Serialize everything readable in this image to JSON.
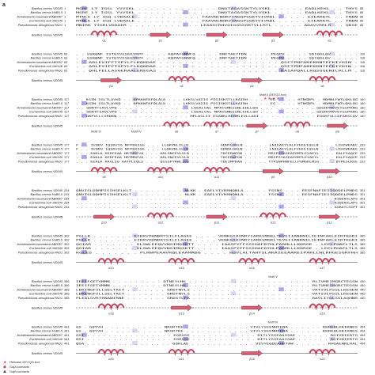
{
  "panel_label": "a",
  "species": [
    "Bacillus cereus VD045",
    "Bacillus cereus HuB5-5",
    "Acinetobacter baumannii AB0057",
    "Escherichia coli UMI146",
    "Pseudomonas aeruginosa PAO1"
  ],
  "blocks": [
    {
      "species": [
        0,
        1,
        2,
        3,
        4
      ],
      "starts": [
        "1",
        "1",
        "1",
        "1",
        "1"
      ],
      "seqs": [
        "MSRE LY IGSL YVVSKL . . . . . . . . . . . . . DNVTAGASGKTYLVSKL . . . . . EADLKEKL . . THYS",
        "MSRE LY IGSL YVVSKL . . . . . . . . . . . . . DNVTAGASGKTYLVSKL . . . . . EADLKEKL . . THYS",
        "MTNLE LY IGQ LVDAALE . . . . . . . . . . . FAAVNCNHRYINGGPSGKTVIVRDL . . . . . EIEARKTL . . FNDN",
        "MTNLE LY IGQ LVDAALE . . . . . . . . . . . FAAVNCNHRYINGGPSGKTVIVRDL . . . . . EIEARKTL . . FNDN",
        "MNIRK YIGRLVDAAER . . . . . . . . . . . . LEAAGCRHVQIGGGSGKTVLLRTL . . . . . ADAVVRRLR . . QDSE"
      ],
      "ends": [
        "85",
        "85",
        "85",
        "85",
        "85"
      ],
      "motif_label": "",
      "ss_label": "Bacillus cereus VD045",
      "ss_names": [
        "α1",
        "β1",
        "β2",
        "β3",
        "α2"
      ]
    },
    {
      "species": [
        0,
        1,
        2,
        3,
        4
      ],
      "starts": [
        "63",
        "63",
        "63",
        "63",
        "63"
      ],
      "seqs": [
        ". . SSRQNF ISTGYVFSEEYRPF . . . . KQPAFGNNFQ . . . . DNFTAEYFDN . . . . PEQPH . . . . SDIQGLQV . . . . .",
        ". . SSRQNF ISTGYVFSEEYRPF . . . . KQPAFGNNFQ . . . . DNFTAEYFDN . . . . PEQPH . . . . SDIQGLQV . . . . .",
        ". . ARLEVIFFTSPYLFLKQKDAE . . . . . . . . . . . . . . . . . . . QSFTPMFAKEKRNTEFKIYHIN .",
        ". . ARLEVIFFTSPYLFLKQKDAE . . . . . . . . . . . . . . . . . . . QSFTPMFAKEKRNTEFKIYHIN .",
        ". . QHLFELLASGERAALEREGAS . . . . . . . . . . . . . . . . . . . EAIAPQALLRQSGGENILRLLM ."
      ],
      "ends": [
        "116",
        "116",
        "116",
        "116",
        "116"
      ],
      "motif_label": "",
      "ss_label": "Bacillus cereus VD045",
      "ss_names": [
        "β3",
        "α4",
        "β4",
        "α5"
      ]
    },
    {
      "species": [
        0,
        1,
        2,
        3,
        4
      ],
      "starts": [
        "117",
        "117",
        "117",
        "117",
        "117"
      ],
      "seqs": [
        ". . KGIN IGLTLAVKD . . NPKKNFKFQLALD . . . LKKSLVAIIG PIGIGKSTLLKAIRH . . . . EG . . . . HTNSDPL . HDMNLFWTLQKLQG",
        ". . KGIN IGLTLAVKD . . NPKKNFKFQLALD . . . LKKSLVAIIG PIGIGKSTLLKAIRH . . . . EG . . . . HTNSDPL . HDMNLFWTLQKLQG",
        ". . SKNTFIAVLVPD . . . . . . . . . . . . . . LGEKLVAL MPAVSMKSSNLEHLLQH . . . . . . . . . . . GDSHYMVVEYSSPRNG",
        ". . SKNTFIAVLVPD . . . . . . . . . . . . . . LGEKLVAL MPAVSMKSSNLEHLLQH . . . . . . . . . . . GDSHYMVVEYSSPRNG",
        ". . GKPVLLLVRDKN . . . . . . . . . . . . . . MPLASLII EGANRLRERMLEVLLAAI . . . . . . . . . . . EGGRFVLLDFAKSLQV"
      ],
      "ends": [
        "180",
        "180",
        "180",
        "180",
        "180"
      ],
      "motif_label": "Motif II (DEXQD-box)",
      "ss_label": "Bacillus cereus VD045",
      "ss_names": [
        "Motif III",
        "Motif IV",
        "α6",
        "α7",
        "β7",
        "α8",
        "β8"
      ]
    },
    {
      "species": [
        0,
        1,
        2,
        3,
        4
      ],
      "starts": [
        "177",
        "177",
        "177",
        "177",
        "177"
      ],
      "seqs": [
        "F . . IVQDV IQSRVIG NFPEKIGG . . . LLQKVKLILLD . . . . . . GDNYLDKLN . . . . . LNIEAEYLRLFVEEEIQSLN . . . LIHIWEARC",
        "F . . IVQDV IQSRVIG NFPEKIGG . . . LLQKVKLILLD . . . . . . GDNYLDKLN . . . . . LNIEAEYLRLFVEEEIQSLN . . . LIHIWEARC",
        ". . . EADLA KERFEAA HRTMREVA . . . ARLSNCEVLVLD . . . . . . TDCERWPGN . . . . . MRIPSYASEAPGMTLEVAEYL . . . EALFSAQCE",
        ". . . EADLA KERFEAA HRTMREVA . . . ARLSNCEVLVLD . . . . . . TDCERWPGN . . . . . MRIPSYASEAPGMTLEVAEYL . . . EALFSAQCE",
        ". . . EEALR RAGLSQ AATPLEQLS . . . QSSSPYRWLIVD . . . . . . TDEIMPRAH . . . . . TTPSNPHNFELLPGMGRLMSG . . . DYPESLRVE"
      ],
      "ends": [
        "233",
        "233",
        "233",
        "233",
        "233"
      ],
      "motif_label": "",
      "ss_label": "Bacillus cereus VD045",
      "ss_names": [
        "α9",
        "α10",
        "α11",
        "β9",
        "β10"
      ]
    },
    {
      "species": [
        0,
        1,
        2,
        3,
        4
      ],
      "starts": [
        "234",
        "234",
        "234",
        "234",
        "234"
      ],
      "seqs": [
        "QNVISLDDMPISIHSELKLT . . . . . . . . . NLKK . EAELVIVRRNQNLA . . . . FSSNS . . . EEGFNAFIEIIQDDELPNDS",
        "QNVISLDDMPISIHSELKLT . . . . . . . . . NLKK . EAELVIVRRNQNLA . . . . FSSNS . . . EEGFNAFIEIIQDDELPNDS",
        ". . . . . . . . . . . . . . . . . . . . . . . . . . . . . . . . . . . . . . . . . . . . . . . . . . . . . . . . RIDDAVLAPS",
        ". . . . . . . . . . . . . . . . . . . . . . . . . . . . . . . . . . . . . . . . . . . . . . . . . . . . . . . . RIDDAVLAPS",
        ". . . . . . . . . . . . . . . . . . . . . . . . . . . . . . . . . . . . . . . . . . . . . . . . . . . . . . . . AGRATLSCPT"
      ],
      "ends": [
        "301",
        "301",
        "301",
        "301",
        "301"
      ],
      "motif_label": "",
      "ss_label": "Bacillus cereus VD045",
      "ss_names": [
        "β10",
        "α12",
        "β12",
        "α13",
        "β12"
      ]
    },
    {
      "species": [
        0,
        1,
        2,
        3,
        4
      ],
      "starts": [
        "302",
        "302",
        "302",
        "302",
        "302"
      ],
      "seqs": [
        "PGLLK . . . . . . . EIKRVVKNDRYSILFLAGEE . . . . VENKGIAVNRYIARKSMDKLTEVEIIANRNILIEINFAKLEIRTKGRI",
        "PGLLK . . . . . . . EIKRVVKNDRYSILFLAGEE . . . . VENKGIAVNRYIARKSMDKLTEVEIIANRNILIEINFAKLEIRTKGRI",
        "QGIAR . . . . . . . SLSWLEEQVVNSIMQSKTT . . . . IAASPYFFSSIHAFDTHLPARMLLLKDRGE . LEELPHAFLTLS",
        "QGIAR . . . . . . . SLSWLEEQVVNSIMQSKTT . . . . IAASPYFFSSIHAFDTHLPARMLLLKDRGE . LEELPHAFLTLS",
        "KGLES . . . . . . . PLRWPEAAVRQLEAAMADG . . . . HSVLALTAHTSLAKAIEEAAREIPARLLWLRHGESGRFRH"
      ],
      "ends": [
        "385",
        "385",
        "385",
        "385",
        "385"
      ],
      "motif_label": "",
      "ss_label": "Bacillus cereus VD045",
      "ss_names": [
        "α14",
        "α15",
        "α16",
        "α17"
      ]
    },
    {
      "species": [
        0,
        1,
        2,
        3,
        4
      ],
      "starts": [
        "366",
        "366",
        "366",
        "366",
        "366"
      ],
      "seqs": [
        "IEEIFGETVMMN . . . . . . . . . DTNEYLHK . . . . . . . . . . . . . . . . . . . . . . RLTVMEIMGRCTEGSN",
        "IEEIFGETVMMN . . . . . . . . . DTNEYLHK . . . . . . . . . . . . . . . . . . . . . . RLTVMEIMGRCTEGSN",
        "LDKINGFILLSELTAIT . . . . . . . GRDTNYLS . . . . . . . . . . . . . . . . . . . . . VATIVLPSSLLKEGEN",
        "LDKINGFILLSELTAIT . . . . . . . GRDTNYLS . . . . . . . . . . . . . . . . . . . . . VATIVLPSSLLKEGEN",
        "PLEALGVRTRNAWIRNE . . . . . . . GRDSTLFA . . . . . . . . . . . . . . . . . . . . . RAVLIYQLSSLAQHNR"
      ],
      "ends": [
        "440",
        "440",
        "440",
        "440",
        "440"
      ],
      "motif_label": "Motif V",
      "ss_label": "Bacillus cereus VD045",
      "ss_names": [
        "α18",
        "β13",
        "β14",
        "α19"
      ]
    },
    {
      "species": [
        0,
        1,
        2,
        3,
        4
      ],
      "starts": [
        "441",
        "441",
        "441",
        "441",
        "441"
      ],
      "seqs": [
        "GS . GQYVH . . . . . . . . . . . NRGRTKE . . . . . . . . . . . . VIVLYSEENHFENA . . . . . . KKRKQLKKIKNKS",
        "GS . GQYVH . . . . . . . . . . . NRGRTKE . . . . . . . . . . . . VIVLYSEENHFENA . . . . . . KKRKQLKKIKNKS",
        "GSI . . . . . . . . . . . . . . . . EGRVSE . . . . . . . . . . . . DITLYSSEAAISAE . . . . . . RGIVDIERTG",
        "GSI . . . . . . . . . . . . . . . . EGRVSE . . . . . . . . . . . . DITLYSSEAAISAE . . . . . . RGIVDIERTG",
        "QGA . . . . . . . . . . . . . . . . GGRLAE . . . . . . . . . . . . VIVYEGDEAHRTAW . . . . . . RHGAEARLRAL"
      ],
      "ends": [
        "494",
        "494",
        "494",
        "494",
        "494"
      ],
      "motif_label": "Motif VI",
      "ss_label": "Bacillus cereus VD045",
      "ss_names": [
        "α20",
        "α21",
        "β15",
        "α22"
      ]
    }
  ],
  "legend": [
    {
      "symbol": "star-icon",
      "color": "#d23a64",
      "text": "Helicase DEXQD-box"
    },
    {
      "symbol": "circle-icon",
      "color": "#d23a64",
      "text": "GajA contacts"
    },
    {
      "symbol": "triangle-icon",
      "color": "#444444",
      "text": "GajB contacts"
    }
  ],
  "colors": {
    "helix": "#e15a73",
    "strand": "#e15a73",
    "highlight": "#8d8ee0",
    "highlight_light": "#c7c8f0",
    "text": "#222222"
  }
}
